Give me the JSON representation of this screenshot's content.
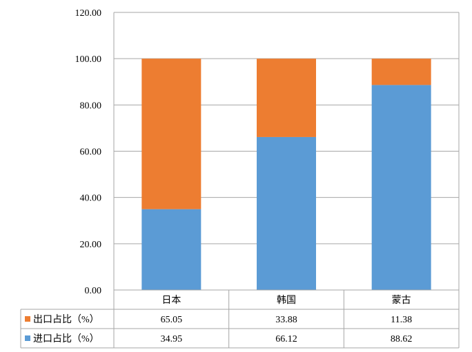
{
  "chart_data": {
    "type": "bar",
    "stacked": true,
    "categories": [
      "日本",
      "韩国",
      "蒙古"
    ],
    "series": [
      {
        "name": "出口占比（%）",
        "values": [
          65.05,
          33.88,
          11.38
        ],
        "color": "#ED7D31"
      },
      {
        "name": "进口占比（%）",
        "values": [
          34.95,
          66.12,
          88.62
        ],
        "color": "#5B9BD5"
      }
    ],
    "ylim": [
      0,
      120
    ],
    "yticks": [
      "0.00",
      "20.00",
      "40.00",
      "60.00",
      "80.00",
      "100.00",
      "120.00"
    ],
    "grid": true,
    "legend": "data-table",
    "data_table": {
      "rows": [
        {
          "label": "出口占比（%）",
          "cells": [
            "65.05",
            "33.88",
            "11.38"
          ]
        },
        {
          "label": "进口占比（%）",
          "cells": [
            "34.95",
            "66.12",
            "88.62"
          ]
        }
      ]
    }
  }
}
